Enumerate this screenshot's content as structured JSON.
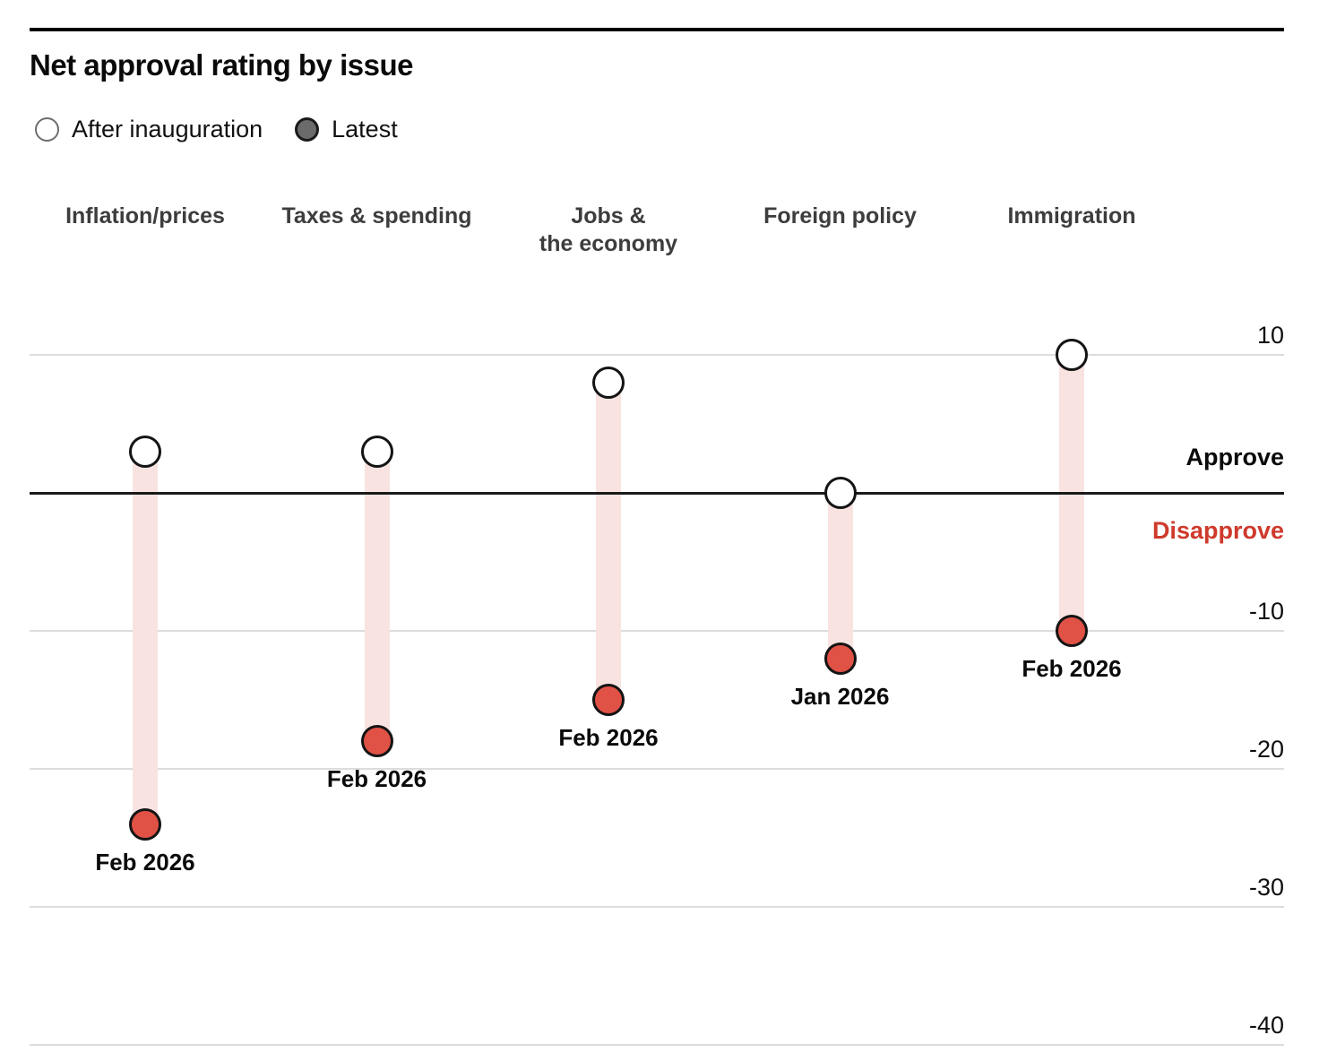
{
  "header": {
    "title": "Net approval rating by issue"
  },
  "legend": {
    "after_label": "After inauguration",
    "latest_label": "Latest",
    "after_icon": "open-circle",
    "latest_icon": "filled-circle"
  },
  "chart_data": {
    "type": "dumbbell",
    "title": "Net approval rating by issue",
    "categories": [
      "Inflation/prices",
      "Taxes & spending",
      "Jobs &\nthe economy",
      "Foreign policy",
      "Immigration"
    ],
    "series": [
      {
        "name": "After inauguration",
        "values": [
          3,
          3,
          8,
          0,
          10
        ]
      },
      {
        "name": "Latest",
        "values": [
          -24,
          -18,
          -15,
          -12,
          -10
        ]
      }
    ],
    "latest_date_labels": [
      "Feb 2026",
      "Feb 2026",
      "Feb 2026",
      "Jan 2026",
      "Feb 2026"
    ],
    "ticks": [
      {
        "label": "10",
        "value": 10
      },
      {
        "label": "-10",
        "value": -10
      },
      {
        "label": "-20",
        "value": -20
      },
      {
        "label": "-30",
        "value": -30
      },
      {
        "label": "-40",
        "value": -40
      }
    ],
    "zero_line_value": 0,
    "approve_label": "Approve",
    "disapprove_label": "Disapprove",
    "ylim": [
      -42,
      13
    ],
    "grid": "horizontal",
    "axis_side": "right",
    "legend_position": "top-left"
  },
  "colors": {
    "latest_point": "#e05146",
    "after_point_fill": "#ffffff",
    "point_stroke": "#141414",
    "band": "#f8e3e1",
    "disapprove_text": "#ce3a2c",
    "legend_latest_fill": "#6b6b6b",
    "gridline": "#dcdcdc",
    "zero_line": "#1a1a1a",
    "category_text": "#3d3d3d",
    "text": "#0a0a0a"
  }
}
